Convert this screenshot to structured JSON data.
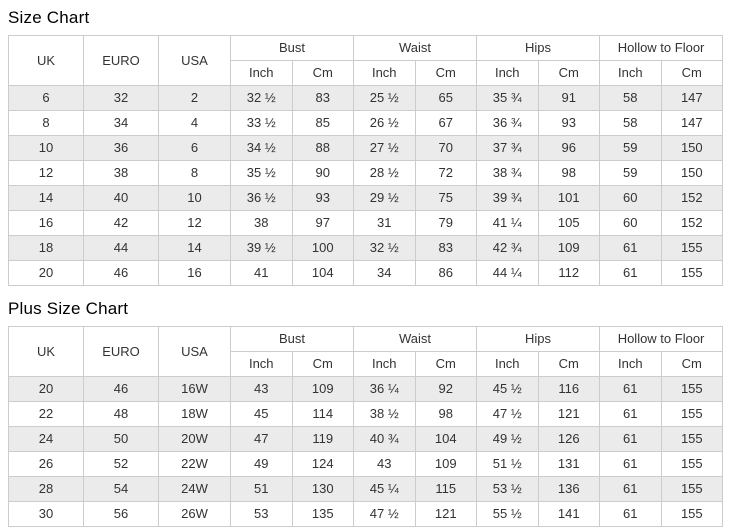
{
  "titles": {
    "size_chart": "Size Chart",
    "plus_size_chart": "Plus Size Chart"
  },
  "header": {
    "single_columns": [
      "UK",
      "EURO",
      "USA"
    ],
    "group_columns": [
      "Bust",
      "Waist",
      "Hips",
      "Hollow to Floor"
    ],
    "sub_columns": [
      "Inch",
      "Cm"
    ]
  },
  "tables": [
    {
      "name": "size_chart",
      "rows": [
        [
          "6",
          "32",
          "2",
          "32 ½",
          "83",
          "25 ½",
          "65",
          "35 ¾",
          "91",
          "58",
          "147"
        ],
        [
          "8",
          "34",
          "4",
          "33 ½",
          "85",
          "26 ½",
          "67",
          "36 ¾",
          "93",
          "58",
          "147"
        ],
        [
          "10",
          "36",
          "6",
          "34 ½",
          "88",
          "27 ½",
          "70",
          "37 ¾",
          "96",
          "59",
          "150"
        ],
        [
          "12",
          "38",
          "8",
          "35 ½",
          "90",
          "28 ½",
          "72",
          "38 ¾",
          "98",
          "59",
          "150"
        ],
        [
          "14",
          "40",
          "10",
          "36 ½",
          "93",
          "29 ½",
          "75",
          "39 ¾",
          "101",
          "60",
          "152"
        ],
        [
          "16",
          "42",
          "12",
          "38",
          "97",
          "31",
          "79",
          "41 ¼",
          "105",
          "60",
          "152"
        ],
        [
          "18",
          "44",
          "14",
          "39 ½",
          "100",
          "32 ½",
          "83",
          "42 ¾",
          "109",
          "61",
          "155"
        ],
        [
          "20",
          "46",
          "16",
          "41",
          "104",
          "34",
          "86",
          "44 ¼",
          "112",
          "61",
          "155"
        ]
      ]
    },
    {
      "name": "plus_size_chart",
      "rows": [
        [
          "20",
          "46",
          "16W",
          "43",
          "109",
          "36 ¼",
          "92",
          "45 ½",
          "116",
          "61",
          "155"
        ],
        [
          "22",
          "48",
          "18W",
          "45",
          "114",
          "38 ½",
          "98",
          "47 ½",
          "121",
          "61",
          "155"
        ],
        [
          "24",
          "50",
          "20W",
          "47",
          "119",
          "40 ¾",
          "104",
          "49 ½",
          "126",
          "61",
          "155"
        ],
        [
          "26",
          "52",
          "22W",
          "49",
          "124",
          "43",
          "109",
          "51 ½",
          "131",
          "61",
          "155"
        ],
        [
          "28",
          "54",
          "24W",
          "51",
          "130",
          "45 ¼",
          "115",
          "53 ½",
          "136",
          "61",
          "155"
        ],
        [
          "30",
          "56",
          "26W",
          "53",
          "135",
          "47 ½",
          "121",
          "55 ½",
          "141",
          "61",
          "155"
        ]
      ]
    }
  ],
  "colors": {
    "row_stripe": "#ebebeb",
    "border": "#cccccc",
    "text": "#333333",
    "title": "#000000"
  }
}
